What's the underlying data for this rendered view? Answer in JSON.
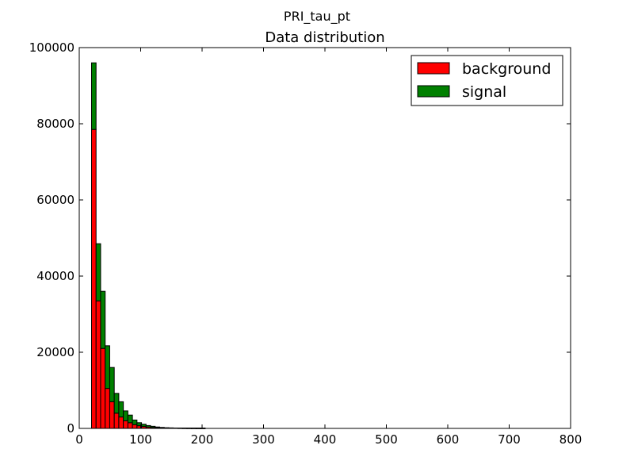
{
  "figure": {
    "suptitle": "PRI_tau_pt"
  },
  "chart_data": {
    "type": "bar",
    "stacked": true,
    "title": "Data distribution",
    "xlabel": "",
    "ylabel": "",
    "xlim": [
      0,
      800
    ],
    "ylim": [
      0,
      100000
    ],
    "x_ticks": [
      0,
      100,
      200,
      300,
      400,
      500,
      600,
      700,
      800
    ],
    "y_ticks": [
      0,
      20000,
      40000,
      60000,
      80000,
      100000
    ],
    "bin_width": 7.4,
    "bin_start": 20,
    "bin_edges_end": 764,
    "legend_position": "top-right",
    "series": [
      {
        "name": "background",
        "color": "#ff0000",
        "values": [
          78500,
          33500,
          21000,
          10500,
          7000,
          4000,
          3000,
          2000,
          1500,
          1000,
          700,
          500,
          350,
          250,
          170,
          120,
          80,
          60,
          45,
          35,
          25,
          20,
          15,
          12,
          10
        ]
      },
      {
        "name": "signal",
        "color": "#008000",
        "values": [
          17500,
          15000,
          15000,
          11200,
          9000,
          5200,
          4000,
          2600,
          2000,
          1200,
          800,
          600,
          400,
          300,
          200,
          140,
          100,
          80,
          60,
          45,
          30,
          25,
          20,
          15,
          12
        ]
      }
    ]
  }
}
